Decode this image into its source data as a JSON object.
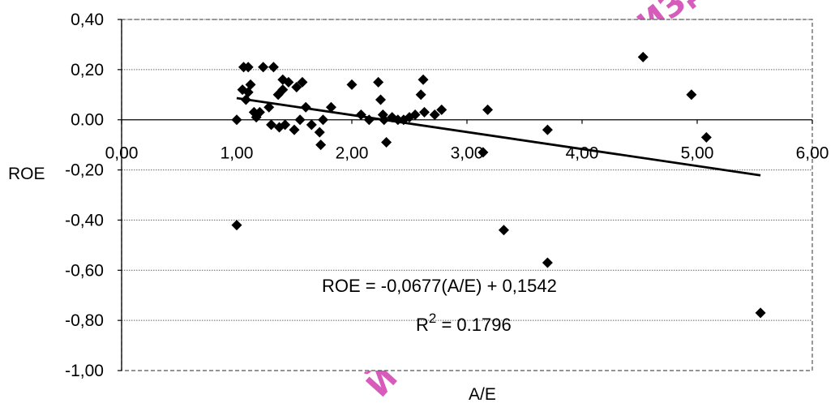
{
  "chart_data": {
    "type": "scatter",
    "title": "",
    "xlabel": "A/E",
    "ylabel": "ROE",
    "xlim": [
      0,
      6
    ],
    "ylim": [
      -1,
      0.4
    ],
    "x_ticks": [
      0,
      1,
      2,
      3,
      4,
      5,
      6
    ],
    "x_tick_labels": [
      "0,00",
      "1,00",
      "2,00",
      "3,00",
      "4,00",
      "5,00",
      "6,00"
    ],
    "y_ticks": [
      0.4,
      0.2,
      0,
      -0.2,
      -0.4,
      -0.6,
      -0.8,
      -1
    ],
    "y_tick_labels": [
      "0,40",
      "0,20",
      "0.00",
      "-0,20",
      "-0,40",
      "-0,60",
      "-0,80",
      "-1,00"
    ],
    "grid": true,
    "marker": "diamond",
    "marker_color": "#000000",
    "points": [
      {
        "x": 1.0,
        "y": 0.0
      },
      {
        "x": 1.0,
        "y": -0.42
      },
      {
        "x": 1.05,
        "y": 0.12
      },
      {
        "x": 1.06,
        "y": 0.21
      },
      {
        "x": 1.08,
        "y": 0.08
      },
      {
        "x": 1.1,
        "y": 0.11
      },
      {
        "x": 1.1,
        "y": 0.21
      },
      {
        "x": 1.12,
        "y": 0.14
      },
      {
        "x": 1.15,
        "y": 0.03
      },
      {
        "x": 1.17,
        "y": 0.01
      },
      {
        "x": 1.2,
        "y": 0.03
      },
      {
        "x": 1.23,
        "y": 0.21
      },
      {
        "x": 1.28,
        "y": 0.05
      },
      {
        "x": 1.3,
        "y": -0.02
      },
      {
        "x": 1.32,
        "y": 0.21
      },
      {
        "x": 1.36,
        "y": 0.1
      },
      {
        "x": 1.37,
        "y": -0.03
      },
      {
        "x": 1.4,
        "y": 0.12
      },
      {
        "x": 1.4,
        "y": 0.16
      },
      {
        "x": 1.42,
        "y": -0.02
      },
      {
        "x": 1.45,
        "y": 0.15
      },
      {
        "x": 1.5,
        "y": -0.04
      },
      {
        "x": 1.52,
        "y": 0.13
      },
      {
        "x": 1.55,
        "y": 0.0
      },
      {
        "x": 1.57,
        "y": 0.15
      },
      {
        "x": 1.6,
        "y": 0.05
      },
      {
        "x": 1.65,
        "y": -0.02
      },
      {
        "x": 1.72,
        "y": -0.05
      },
      {
        "x": 1.73,
        "y": -0.1
      },
      {
        "x": 1.75,
        "y": 0.0
      },
      {
        "x": 1.82,
        "y": 0.05
      },
      {
        "x": 2.0,
        "y": 0.14
      },
      {
        "x": 2.08,
        "y": 0.02
      },
      {
        "x": 2.15,
        "y": 0.0
      },
      {
        "x": 2.23,
        "y": 0.15
      },
      {
        "x": 2.25,
        "y": 0.08
      },
      {
        "x": 2.27,
        "y": 0.02
      },
      {
        "x": 2.28,
        "y": 0.0
      },
      {
        "x": 2.3,
        "y": -0.09
      },
      {
        "x": 2.35,
        "y": 0.01
      },
      {
        "x": 2.4,
        "y": 0.0
      },
      {
        "x": 2.45,
        "y": 0.0
      },
      {
        "x": 2.5,
        "y": 0.01
      },
      {
        "x": 2.55,
        "y": 0.02
      },
      {
        "x": 2.6,
        "y": 0.1
      },
      {
        "x": 2.62,
        "y": 0.16
      },
      {
        "x": 2.63,
        "y": 0.03
      },
      {
        "x": 2.72,
        "y": 0.02
      },
      {
        "x": 2.78,
        "y": 0.04
      },
      {
        "x": 3.14,
        "y": -0.13
      },
      {
        "x": 3.18,
        "y": 0.04
      },
      {
        "x": 3.32,
        "y": -0.44
      },
      {
        "x": 3.7,
        "y": -0.57
      },
      {
        "x": 3.7,
        "y": -0.04
      },
      {
        "x": 4.53,
        "y": 0.25
      },
      {
        "x": 4.95,
        "y": 0.1
      },
      {
        "x": 5.08,
        "y": -0.07
      },
      {
        "x": 5.55,
        "y": -0.77
      }
    ],
    "trendline": {
      "slope": -0.0677,
      "intercept": 0.1542,
      "x_range": [
        1.0,
        5.55
      ]
    },
    "annotations": {
      "equation": "ROE = -0,0677(A/E) + 0,1542",
      "r2_prefix": "R",
      "r2_sup": "2",
      "r2_value": " = 0.1796"
    }
  },
  "watermark": {
    "text_bottom": "Й ЗАПРАНИ",
    "text_top": "ИЗДАТЕЛЬ",
    "color": "#d13fb0"
  }
}
